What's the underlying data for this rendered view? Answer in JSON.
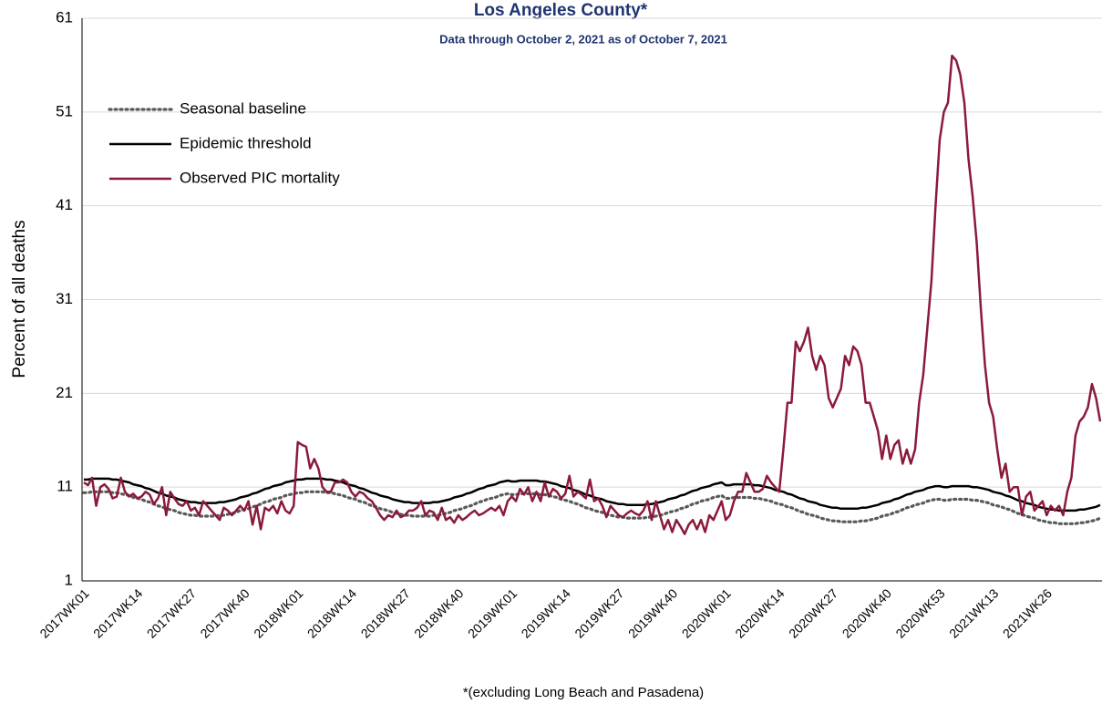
{
  "chart_data": {
    "type": "line",
    "title": "Los Angeles County*",
    "subtitle": "Data through October 2, 2021 as of October 7, 2021",
    "ylabel": "Percent of all deaths",
    "footnote": "*(excluding Long Beach and Pasadena)",
    "ylim": [
      1,
      61
    ],
    "yticks": [
      1,
      11,
      21,
      31,
      41,
      51,
      61
    ],
    "grid": true,
    "legend": "upper left",
    "categories": [
      "2017WK01",
      null,
      null,
      null,
      null,
      null,
      null,
      null,
      null,
      null,
      null,
      null,
      null,
      "2017WK14",
      null,
      null,
      null,
      null,
      null,
      null,
      null,
      null,
      null,
      null,
      null,
      null,
      "2017WK27",
      null,
      null,
      null,
      null,
      null,
      null,
      null,
      null,
      null,
      null,
      null,
      null,
      "2017WK40",
      null,
      null,
      null,
      null,
      null,
      null,
      null,
      null,
      null,
      null,
      null,
      null,
      "2018WK01",
      null,
      null,
      null,
      null,
      null,
      null,
      null,
      null,
      null,
      null,
      null,
      null,
      "2018WK14",
      null,
      null,
      null,
      null,
      null,
      null,
      null,
      null,
      null,
      null,
      null,
      null,
      "2018WK27",
      null,
      null,
      null,
      null,
      null,
      null,
      null,
      null,
      null,
      null,
      null,
      null,
      "2018WK40",
      null,
      null,
      null,
      null,
      null,
      null,
      null,
      null,
      null,
      null,
      null,
      null,
      "2019WK01",
      null,
      null,
      null,
      null,
      null,
      null,
      null,
      null,
      null,
      null,
      null,
      null,
      "2019WK14",
      null,
      null,
      null,
      null,
      null,
      null,
      null,
      null,
      null,
      null,
      null,
      null,
      "2019WK27",
      null,
      null,
      null,
      null,
      null,
      null,
      null,
      null,
      null,
      null,
      null,
      null,
      "2019WK40",
      null,
      null,
      null,
      null,
      null,
      null,
      null,
      null,
      null,
      null,
      null,
      null,
      "2020WK01",
      null,
      null,
      null,
      null,
      null,
      null,
      null,
      null,
      null,
      null,
      null,
      null,
      "2020WK14",
      null,
      null,
      null,
      null,
      null,
      null,
      null,
      null,
      null,
      null,
      null,
      null,
      "2020WK27",
      null,
      null,
      null,
      null,
      null,
      null,
      null,
      null,
      null,
      null,
      null,
      null,
      "2020WK40",
      null,
      null,
      null,
      null,
      null,
      null,
      null,
      null,
      null,
      null,
      null,
      null,
      "2020WK53",
      null,
      null,
      null,
      null,
      null,
      null,
      null,
      null,
      null,
      null,
      null,
      null,
      "2021WK13",
      null,
      null,
      null,
      null,
      null,
      null,
      null,
      null,
      null,
      null,
      null,
      null,
      "2021WK26",
      null,
      null,
      null,
      null,
      null,
      null,
      null,
      null,
      null,
      null,
      null,
      null,
      null
    ],
    "series": [
      {
        "name": "Seasonal baseline",
        "color": "#595959",
        "line_style": "dotted",
        "values": [
          10.4,
          10.4,
          10.5,
          10.5,
          10.5,
          10.5,
          10.5,
          10.4,
          10.4,
          10.3,
          10.2,
          10.1,
          9.9,
          9.8,
          9.7,
          9.5,
          9.4,
          9.2,
          9.0,
          8.9,
          8.7,
          8.6,
          8.5,
          8.3,
          8.2,
          8.1,
          8.0,
          8.0,
          7.9,
          7.9,
          7.9,
          7.9,
          7.9,
          8.0,
          8.0,
          8.1,
          8.2,
          8.3,
          8.5,
          8.6,
          8.7,
          8.9,
          9.0,
          9.2,
          9.4,
          9.5,
          9.7,
          9.8,
          9.9,
          10.1,
          10.2,
          10.3,
          10.4,
          10.4,
          10.5,
          10.5,
          10.5,
          10.5,
          10.5,
          10.4,
          10.4,
          10.3,
          10.2,
          10.1,
          9.9,
          9.8,
          9.7,
          9.5,
          9.4,
          9.2,
          9.0,
          8.9,
          8.7,
          8.6,
          8.5,
          8.3,
          8.2,
          8.1,
          8.0,
          8.0,
          7.9,
          7.9,
          7.9,
          7.9,
          7.9,
          8.0,
          8.0,
          8.1,
          8.2,
          8.3,
          8.5,
          8.6,
          8.7,
          8.9,
          9.0,
          9.2,
          9.4,
          9.5,
          9.7,
          9.8,
          9.9,
          10.1,
          10.2,
          10.3,
          10.2,
          10.2,
          10.3,
          10.3,
          10.3,
          10.3,
          10.3,
          10.2,
          10.2,
          10.1,
          10.0,
          9.9,
          9.7,
          9.6,
          9.5,
          9.3,
          9.2,
          9.0,
          8.8,
          8.7,
          8.5,
          8.4,
          8.3,
          8.1,
          8.0,
          7.9,
          7.8,
          7.8,
          7.7,
          7.7,
          7.7,
          7.7,
          7.7,
          7.8,
          7.8,
          7.9,
          8.0,
          8.1,
          8.3,
          8.4,
          8.5,
          8.7,
          8.8,
          9.0,
          9.2,
          9.3,
          9.5,
          9.6,
          9.7,
          9.9,
          10.0,
          10.1,
          9.8,
          9.8,
          9.9,
          9.9,
          9.9,
          9.9,
          9.9,
          9.8,
          9.8,
          9.7,
          9.6,
          9.5,
          9.3,
          9.2,
          9.1,
          8.9,
          8.8,
          8.6,
          8.4,
          8.3,
          8.1,
          8.0,
          7.9,
          7.7,
          7.6,
          7.5,
          7.4,
          7.4,
          7.3,
          7.3,
          7.3,
          7.3,
          7.3,
          7.4,
          7.4,
          7.5,
          7.6,
          7.7,
          7.9,
          8.0,
          8.1,
          8.3,
          8.4,
          8.6,
          8.8,
          8.9,
          9.1,
          9.2,
          9.3,
          9.5,
          9.6,
          9.7,
          9.7,
          9.6,
          9.6,
          9.7,
          9.7,
          9.7,
          9.7,
          9.7,
          9.6,
          9.6,
          9.5,
          9.4,
          9.3,
          9.1,
          9.0,
          8.9,
          8.7,
          8.6,
          8.4,
          8.2,
          8.1,
          7.9,
          7.8,
          7.7,
          7.5,
          7.4,
          7.3,
          7.2,
          7.2,
          7.1,
          7.1,
          7.1,
          7.1,
          7.1,
          7.2,
          7.2,
          7.3,
          7.4,
          7.5,
          7.7
        ]
      },
      {
        "name": "Epidemic threshold",
        "color": "#000000",
        "line_style": "solid",
        "values": [
          11.8,
          11.8,
          11.9,
          11.9,
          11.9,
          11.9,
          11.9,
          11.8,
          11.8,
          11.7,
          11.6,
          11.5,
          11.3,
          11.2,
          11.1,
          10.9,
          10.8,
          10.6,
          10.4,
          10.3,
          10.1,
          10.0,
          9.9,
          9.7,
          9.6,
          9.5,
          9.4,
          9.4,
          9.3,
          9.3,
          9.3,
          9.3,
          9.3,
          9.4,
          9.4,
          9.5,
          9.6,
          9.7,
          9.9,
          10.0,
          10.1,
          10.3,
          10.4,
          10.6,
          10.8,
          10.9,
          11.1,
          11.2,
          11.3,
          11.5,
          11.6,
          11.7,
          11.8,
          11.8,
          11.9,
          11.9,
          11.9,
          11.9,
          11.9,
          11.8,
          11.8,
          11.7,
          11.6,
          11.5,
          11.3,
          11.2,
          11.1,
          10.9,
          10.8,
          10.6,
          10.4,
          10.3,
          10.1,
          10.0,
          9.9,
          9.7,
          9.6,
          9.5,
          9.4,
          9.4,
          9.3,
          9.3,
          9.3,
          9.3,
          9.3,
          9.4,
          9.4,
          9.5,
          9.6,
          9.7,
          9.9,
          10.0,
          10.1,
          10.3,
          10.4,
          10.6,
          10.8,
          10.9,
          11.1,
          11.2,
          11.3,
          11.5,
          11.6,
          11.7,
          11.6,
          11.6,
          11.7,
          11.7,
          11.7,
          11.7,
          11.7,
          11.6,
          11.6,
          11.5,
          11.4,
          11.3,
          11.1,
          11.0,
          10.9,
          10.7,
          10.6,
          10.4,
          10.2,
          10.1,
          9.9,
          9.8,
          9.7,
          9.5,
          9.4,
          9.3,
          9.2,
          9.2,
          9.1,
          9.1,
          9.1,
          9.1,
          9.1,
          9.2,
          9.2,
          9.3,
          9.4,
          9.5,
          9.7,
          9.8,
          9.9,
          10.1,
          10.2,
          10.4,
          10.6,
          10.7,
          10.9,
          11.0,
          11.1,
          11.3,
          11.4,
          11.5,
          11.2,
          11.2,
          11.3,
          11.3,
          11.3,
          11.3,
          11.3,
          11.2,
          11.2,
          11.1,
          11.0,
          10.9,
          10.7,
          10.6,
          10.5,
          10.3,
          10.2,
          10.0,
          9.8,
          9.7,
          9.5,
          9.4,
          9.3,
          9.1,
          9.0,
          8.9,
          8.8,
          8.8,
          8.7,
          8.7,
          8.7,
          8.7,
          8.7,
          8.8,
          8.8,
          8.9,
          9.0,
          9.1,
          9.3,
          9.4,
          9.5,
          9.7,
          9.8,
          10.0,
          10.2,
          10.3,
          10.5,
          10.6,
          10.7,
          10.9,
          11.0,
          11.1,
          11.1,
          11.0,
          11.0,
          11.1,
          11.1,
          11.1,
          11.1,
          11.1,
          11.0,
          11.0,
          10.9,
          10.8,
          10.7,
          10.5,
          10.4,
          10.3,
          10.1,
          10.0,
          9.8,
          9.6,
          9.5,
          9.3,
          9.2,
          9.1,
          8.9,
          8.8,
          8.7,
          8.6,
          8.6,
          8.5,
          8.5,
          8.5,
          8.5,
          8.5,
          8.6,
          8.6,
          8.7,
          8.8,
          8.9,
          9.1
        ]
      },
      {
        "name": "Observed PIC mortality",
        "color": "#8b1a3a",
        "line_style": "solid",
        "values": [
          11.5,
          11.2,
          12.0,
          9.0,
          11.0,
          11.3,
          10.8,
          9.8,
          10.0,
          12.0,
          10.5,
          10.0,
          10.3,
          9.8,
          10.0,
          10.5,
          10.2,
          9.2,
          9.8,
          11.0,
          8.0,
          10.5,
          9.8,
          9.2,
          9.0,
          9.5,
          8.5,
          8.8,
          8.0,
          9.5,
          9.0,
          8.5,
          8.0,
          7.5,
          8.8,
          8.5,
          8.0,
          8.5,
          9.0,
          8.5,
          9.5,
          7.0,
          9.0,
          6.5,
          8.8,
          8.5,
          9.0,
          8.2,
          9.5,
          8.5,
          8.2,
          9.0,
          15.8,
          15.5,
          15.3,
          13.0,
          14.0,
          13.0,
          11.0,
          10.5,
          10.5,
          11.5,
          11.5,
          11.8,
          11.5,
          10.5,
          10.0,
          10.5,
          10.3,
          9.8,
          9.5,
          8.8,
          8.0,
          7.5,
          8.0,
          7.8,
          8.5,
          7.8,
          8.0,
          8.5,
          8.5,
          8.8,
          9.5,
          8.0,
          8.5,
          8.3,
          7.5,
          8.8,
          7.5,
          7.8,
          7.2,
          8.0,
          7.5,
          7.8,
          8.2,
          8.5,
          8.0,
          8.2,
          8.5,
          8.8,
          8.5,
          9.0,
          8.0,
          9.5,
          10.0,
          9.5,
          10.8,
          10.2,
          11.0,
          9.5,
          10.5,
          9.5,
          11.5,
          10.0,
          10.8,
          10.5,
          9.8,
          10.3,
          12.2,
          10.0,
          10.5,
          10.2,
          9.8,
          11.8,
          9.5,
          9.8,
          9.0,
          7.8,
          9.0,
          8.5,
          8.0,
          7.8,
          8.2,
          8.5,
          8.2,
          8.0,
          8.5,
          9.5,
          7.5,
          9.5,
          8.0,
          6.5,
          7.5,
          6.2,
          7.5,
          6.8,
          6.0,
          7.0,
          7.5,
          6.5,
          7.5,
          6.2,
          8.0,
          7.5,
          8.5,
          9.5,
          7.5,
          8.0,
          9.5,
          10.5,
          10.5,
          12.5,
          11.5,
          10.5,
          10.5,
          10.8,
          12.2,
          11.5,
          11.0,
          10.5,
          15.0,
          20.0,
          20.0,
          26.5,
          25.5,
          26.5,
          28.0,
          25.0,
          23.5,
          25.0,
          24.0,
          20.5,
          19.5,
          20.5,
          21.5,
          25.0,
          24.0,
          26.0,
          25.5,
          24.0,
          20.0,
          20.0,
          18.5,
          17.0,
          14.0,
          16.5,
          14.0,
          15.5,
          16.0,
          13.5,
          15.0,
          13.5,
          15.0,
          20.0,
          23.0,
          28.0,
          33.0,
          41.0,
          48.0,
          51.0,
          52.0,
          57.0,
          56.5,
          55.0,
          52.0,
          46.0,
          42.0,
          37.0,
          30.0,
          24.0,
          20.0,
          18.5,
          15.0,
          12.0,
          13.5,
          10.5,
          11.0,
          11.0,
          8.0,
          10.0,
          10.5,
          8.5,
          9.0,
          9.5,
          8.0,
          9.0,
          8.5,
          9.0,
          8.0,
          10.5,
          12.0,
          16.5,
          18.0,
          18.5,
          19.5,
          22.0,
          20.5,
          18.0
        ]
      }
    ]
  }
}
